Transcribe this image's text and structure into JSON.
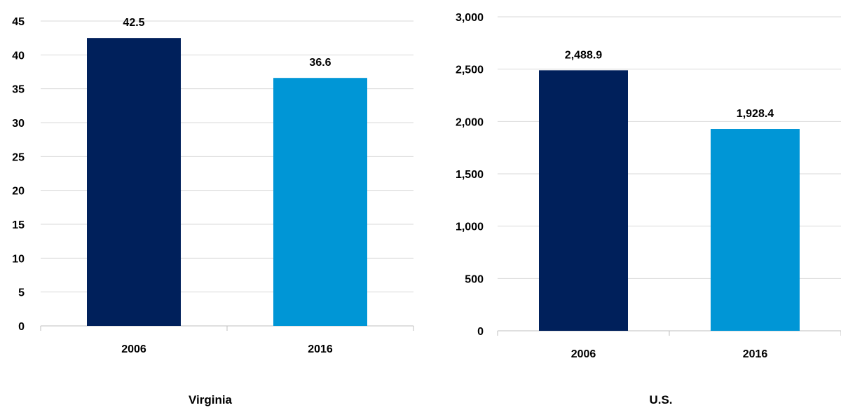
{
  "chart_data": [
    {
      "type": "bar",
      "title": "Virginia",
      "categories": [
        "2006",
        "2016"
      ],
      "values": [
        42.5,
        36.6
      ],
      "value_labels": [
        "42.5",
        "36.6"
      ],
      "ylim": [
        0,
        45
      ],
      "yticks": [
        0,
        5,
        10,
        15,
        20,
        25,
        30,
        35,
        40,
        45
      ],
      "ytick_labels": [
        "0",
        "5",
        "10",
        "15",
        "20",
        "25",
        "30",
        "35",
        "40",
        "45"
      ],
      "bar_colors": [
        "#00205b",
        "#0096d6"
      ],
      "grid": true
    },
    {
      "type": "bar",
      "title": "U.S.",
      "categories": [
        "2006",
        "2016"
      ],
      "values": [
        2488.9,
        1928.4
      ],
      "value_labels": [
        "2,488.9",
        "1,928.4"
      ],
      "ylim": [
        0,
        3000
      ],
      "yticks": [
        0,
        500,
        1000,
        1500,
        2000,
        2500,
        3000
      ],
      "ytick_labels": [
        "0",
        "500",
        "1,000",
        "1,500",
        "2,000",
        "2,500",
        "3,000"
      ],
      "bar_colors": [
        "#00205b",
        "#0096d6"
      ],
      "grid": true
    }
  ],
  "colors": {
    "gridline": "#d9d9d9",
    "axis": "#bfbfbf"
  }
}
